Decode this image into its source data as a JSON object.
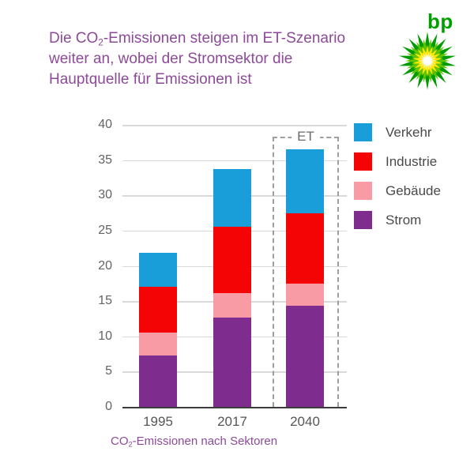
{
  "header": {
    "line1_prefix": "Die CO",
    "line1_sub": "2",
    "line1_suffix": "-Emissionen steigen im ET-Szenario",
    "line2": "weiter an, wobei der Stromsektor die",
    "line3": "Hauptquelle für Emissionen ist"
  },
  "logo": {
    "wordmark": "bp"
  },
  "caption": {
    "prefix": "CO",
    "sub": "2",
    "suffix": "-Emissionen nach Sektoren"
  },
  "colors": {
    "title_text": "#8c4a99",
    "bp_green": "#00a000",
    "axis_line": "#3c3c3c",
    "gridline": "#d9d9d9",
    "tick_label": "#636363",
    "legend_label": "#4a4a4a",
    "annotation": "#6b6b6b"
  },
  "chart_data": {
    "type": "bar",
    "stacked": true,
    "title": "CO2-Emissionen nach Sektoren",
    "categories": [
      "1995",
      "2017",
      "2040"
    ],
    "series": [
      {
        "name": "Strom",
        "color": "#7e2d8e",
        "values": [
          7.3,
          12.7,
          14.3
        ]
      },
      {
        "name": "Gebäude",
        "color": "#f99ba4",
        "values": [
          3.2,
          3.4,
          3.2
        ]
      },
      {
        "name": "Industrie",
        "color": "#f40404",
        "values": [
          6.5,
          9.4,
          10.0
        ]
      },
      {
        "name": "Verkehr",
        "color": "#1a9ed9",
        "values": [
          4.9,
          8.2,
          9.0
        ]
      }
    ],
    "totals": [
      21.9,
      33.7,
      36.5
    ],
    "ylim": [
      0,
      40
    ],
    "yticks": [
      0,
      5,
      10,
      15,
      20,
      25,
      30,
      35,
      40
    ],
    "grid": true,
    "legend_position": "right",
    "legend_order": [
      "Verkehr",
      "Industrie",
      "Gebäude",
      "Strom"
    ],
    "annotation": {
      "label": "ET",
      "category": "2040"
    }
  }
}
